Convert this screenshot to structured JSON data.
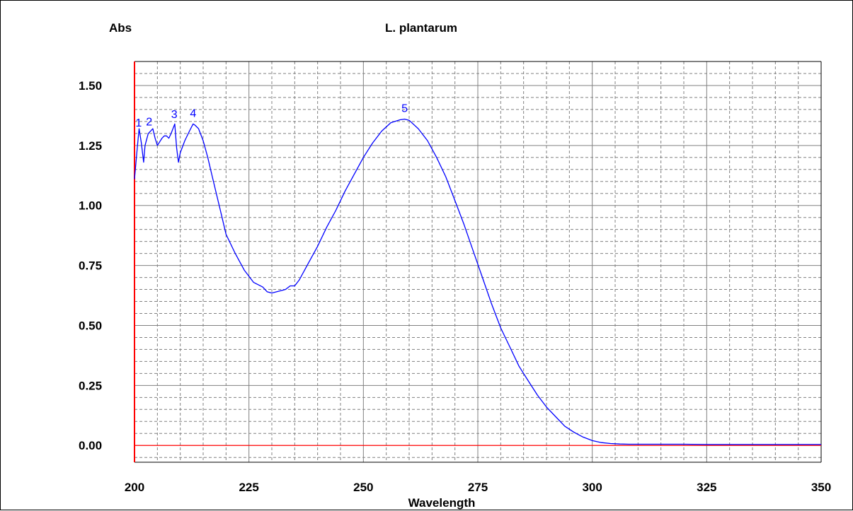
{
  "chart_data": {
    "type": "line",
    "title": "L. plantarum",
    "xlabel": "Wavelength",
    "ylabel": "Abs",
    "xlim": [
      200,
      350
    ],
    "ylim": [
      -0.07,
      1.6
    ],
    "x_ticks": [
      "200",
      "225",
      "250",
      "275",
      "300",
      "325",
      "350"
    ],
    "y_ticks": [
      "0.00",
      "0.25",
      "0.50",
      "0.75",
      "1.00",
      "1.25",
      "1.50"
    ],
    "grid": true,
    "colors": {
      "line": "#0000ff",
      "baseline": "#ff0000",
      "left_axis": "#ff0000",
      "grid": "#808080",
      "peak_labels": "#0000ff"
    },
    "baseline_y": 0,
    "series": [
      {
        "x": [
          200,
          200.6,
          201,
          201.5,
          202,
          202.3,
          203,
          204,
          204.5,
          205,
          206,
          206.5,
          207,
          207.5,
          208,
          208.8,
          209.2,
          209.6,
          210,
          211,
          212,
          212.8,
          213.2,
          214,
          215,
          216,
          217,
          218,
          219,
          220,
          222,
          224,
          226,
          228,
          229,
          230,
          231,
          232,
          233,
          234,
          235,
          236,
          238,
          240,
          242,
          244,
          246,
          248,
          250,
          252,
          254,
          256,
          258,
          259,
          260,
          262,
          264,
          266,
          268,
          270,
          272,
          274,
          276,
          278,
          280,
          282,
          284,
          286,
          288,
          290,
          292,
          294,
          296,
          298,
          300,
          302,
          304,
          306,
          308,
          310,
          315,
          320,
          325,
          330,
          340,
          350
        ],
        "y": [
          1.11,
          1.24,
          1.32,
          1.26,
          1.18,
          1.25,
          1.3,
          1.32,
          1.28,
          1.25,
          1.28,
          1.29,
          1.29,
          1.28,
          1.3,
          1.34,
          1.24,
          1.18,
          1.22,
          1.27,
          1.31,
          1.34,
          1.335,
          1.32,
          1.27,
          1.2,
          1.12,
          1.04,
          0.96,
          0.88,
          0.8,
          0.73,
          0.68,
          0.66,
          0.64,
          0.635,
          0.64,
          0.645,
          0.65,
          0.665,
          0.665,
          0.69,
          0.76,
          0.83,
          0.91,
          0.98,
          1.06,
          1.13,
          1.2,
          1.26,
          1.31,
          1.345,
          1.357,
          1.36,
          1.355,
          1.32,
          1.27,
          1.2,
          1.12,
          1.02,
          0.92,
          0.81,
          0.7,
          0.59,
          0.49,
          0.41,
          0.33,
          0.27,
          0.21,
          0.16,
          0.12,
          0.08,
          0.055,
          0.035,
          0.02,
          0.012,
          0.008,
          0.006,
          0.005,
          0.005,
          0.005,
          0.005,
          0.004,
          0.004,
          0.004,
          0.004
        ]
      }
    ],
    "peaks": [
      {
        "label": "1",
        "x": 200.9
      },
      {
        "label": "2",
        "x": 203.2
      },
      {
        "label": "3",
        "x": 208.7
      },
      {
        "label": "4",
        "x": 212.8
      },
      {
        "label": "5",
        "x": 259.0
      }
    ]
  }
}
